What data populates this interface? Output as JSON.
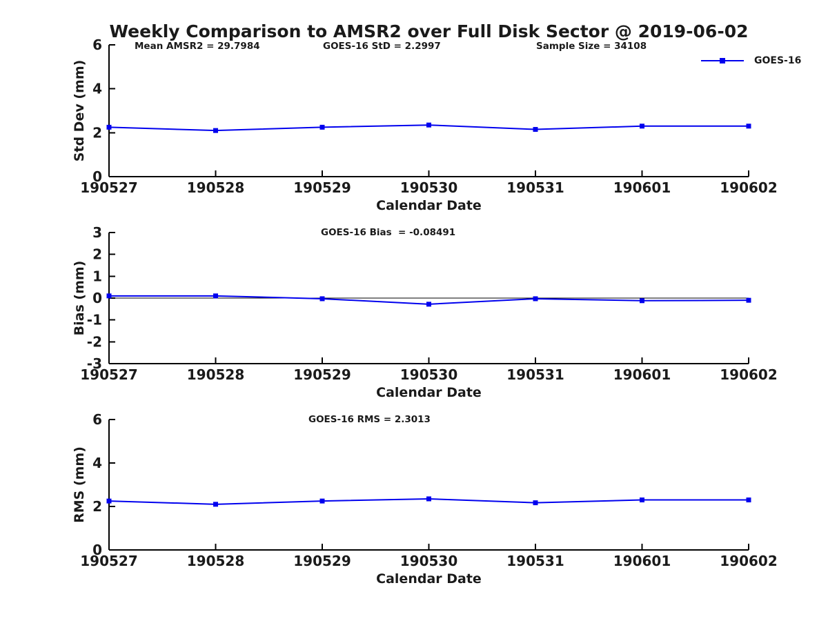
{
  "figure": {
    "title": "Weekly Comparison to AMSR2 over Full Disk Sector @ 2019-06-02",
    "legend": {
      "label": "GOES-16"
    }
  },
  "colors": {
    "line": "#0000EE",
    "text": "#1A1A1A",
    "axis": "#000000",
    "background": "#FFFFFF"
  },
  "chart_data": [
    {
      "type": "line",
      "panel": "std-dev",
      "annotations": [
        "Mean AMSR2 = 29.7984",
        "GOES-16 StD = 2.2997",
        "Sample Size = 34108"
      ],
      "x_categories": [
        "190527",
        "190528",
        "190529",
        "190530",
        "190531",
        "190601",
        "190602"
      ],
      "series": [
        {
          "name": "GOES-16",
          "values": [
            2.25,
            2.1,
            2.25,
            2.35,
            2.15,
            2.3,
            2.3
          ]
        }
      ],
      "xlabel": "Calendar Date",
      "ylabel": "Std Dev (mm)",
      "ylim": [
        0,
        6
      ],
      "yticks": [
        0,
        2,
        4,
        6
      ],
      "grid": false,
      "zero_line": false,
      "legend_position": "top-right",
      "marker": "square"
    },
    {
      "type": "line",
      "panel": "bias",
      "annotations": [
        "GOES-16 Bias  = -0.08491"
      ],
      "x_categories": [
        "190527",
        "190528",
        "190529",
        "190530",
        "190531",
        "190601",
        "190602"
      ],
      "series": [
        {
          "name": "GOES-16",
          "values": [
            0.1,
            0.1,
            -0.03,
            -0.28,
            -0.03,
            -0.12,
            -0.1
          ]
        }
      ],
      "xlabel": "Calendar Date",
      "ylabel": "Bias (mm)",
      "ylim": [
        -3,
        3
      ],
      "yticks": [
        -3,
        -2,
        -1,
        0,
        1,
        2,
        3
      ],
      "grid": false,
      "zero_line": true,
      "marker": "square"
    },
    {
      "type": "line",
      "panel": "rms",
      "annotations": [
        "GOES-16 RMS = 2.3013"
      ],
      "x_categories": [
        "190527",
        "190528",
        "190529",
        "190530",
        "190531",
        "190601",
        "190602"
      ],
      "series": [
        {
          "name": "GOES-16",
          "values": [
            2.25,
            2.1,
            2.25,
            2.35,
            2.17,
            2.3,
            2.3
          ]
        }
      ],
      "xlabel": "Calendar Date",
      "ylabel": "RMS (mm)",
      "ylim": [
        0,
        6
      ],
      "yticks": [
        0,
        2,
        4,
        6
      ],
      "grid": false,
      "zero_line": false,
      "marker": "square"
    }
  ]
}
